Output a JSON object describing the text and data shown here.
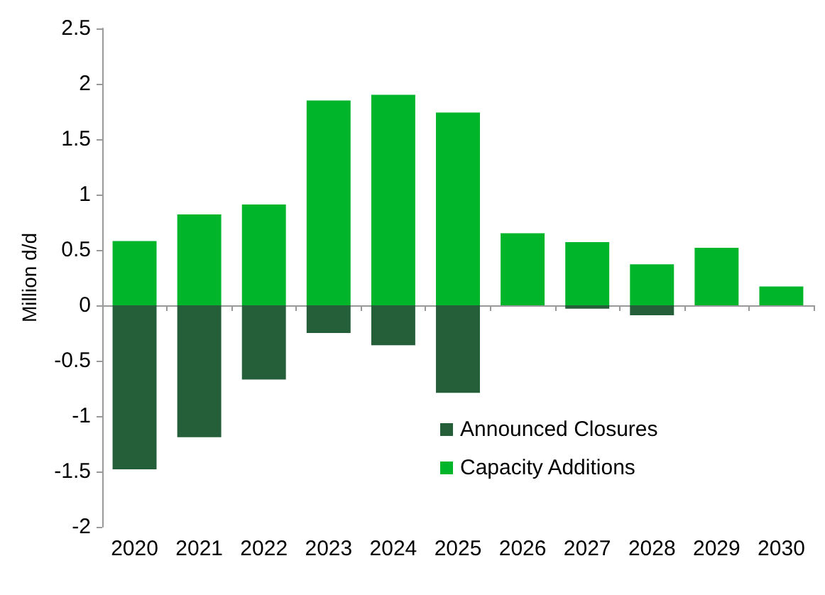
{
  "chart_data": {
    "type": "bar",
    "stacked": true,
    "ylabel": "Million d/d",
    "categories": [
      "2020",
      "2021",
      "2022",
      "2023",
      "2024",
      "2025",
      "2026",
      "2027",
      "2028",
      "2029",
      "2030"
    ],
    "series": [
      {
        "name": "Announced Closures",
        "color": "#245f3a",
        "values": [
          -1.48,
          -1.19,
          -0.67,
          -0.25,
          -0.36,
          -0.79,
          0,
          -0.03,
          -0.09,
          0,
          0
        ]
      },
      {
        "name": "Capacity Additions",
        "color": "#00b52a",
        "values": [
          0.58,
          0.82,
          0.91,
          1.85,
          1.9,
          1.74,
          0.65,
          0.57,
          0.37,
          0.52,
          0.17
        ]
      }
    ],
    "ylim": [
      -2,
      2.5
    ],
    "yticks": [
      -2,
      -1.5,
      -1,
      -0.5,
      0,
      0.5,
      1,
      1.5,
      2,
      2.5
    ],
    "legend": "bottom"
  }
}
